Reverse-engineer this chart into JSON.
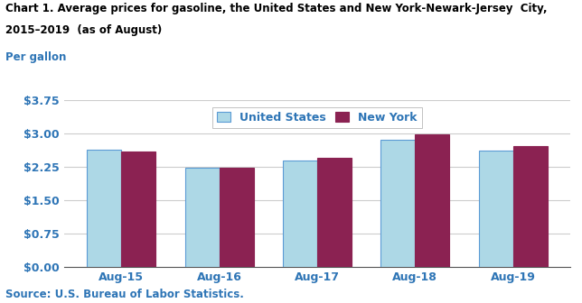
{
  "title_line1": "Chart 1. Average prices for gasoline, the United States and New York-Newark-Jersey  City,",
  "title_line2": "2015–2019  (as of August)",
  "per_gallon": "Per gallon",
  "source": "Source: U.S. Bureau of Labor Statistics.",
  "categories": [
    "Aug-15",
    "Aug-16",
    "Aug-17",
    "Aug-18",
    "Aug-19"
  ],
  "series": [
    {
      "label": "United States",
      "values": [
        2.63,
        2.22,
        2.38,
        2.85,
        2.62
      ],
      "color": "#ADD8E6",
      "edgecolor": "#5B9BD5"
    },
    {
      "label": "New York",
      "values": [
        2.6,
        2.22,
        2.45,
        2.98,
        2.72
      ],
      "color": "#8B2252",
      "edgecolor": "#8B2252"
    }
  ],
  "ylim": [
    0.0,
    3.75
  ],
  "yticks": [
    0.0,
    0.75,
    1.5,
    2.25,
    3.0,
    3.75
  ],
  "ytick_labels": [
    "$0.00",
    "$0.75",
    "$1.50",
    "$2.25",
    "$3.00",
    "$3.75"
  ],
  "bar_width": 0.35,
  "background_color": "#FFFFFF",
  "grid_color": "#CCCCCC",
  "title_fontsize": 8.5,
  "tick_fontsize": 9,
  "legend_fontsize": 9,
  "source_fontsize": 8.5,
  "per_gallon_fontsize": 8.5,
  "axis_label_color": "#2E75B6",
  "tick_label_color": "#2E75B6",
  "source_color": "#2E75B6"
}
